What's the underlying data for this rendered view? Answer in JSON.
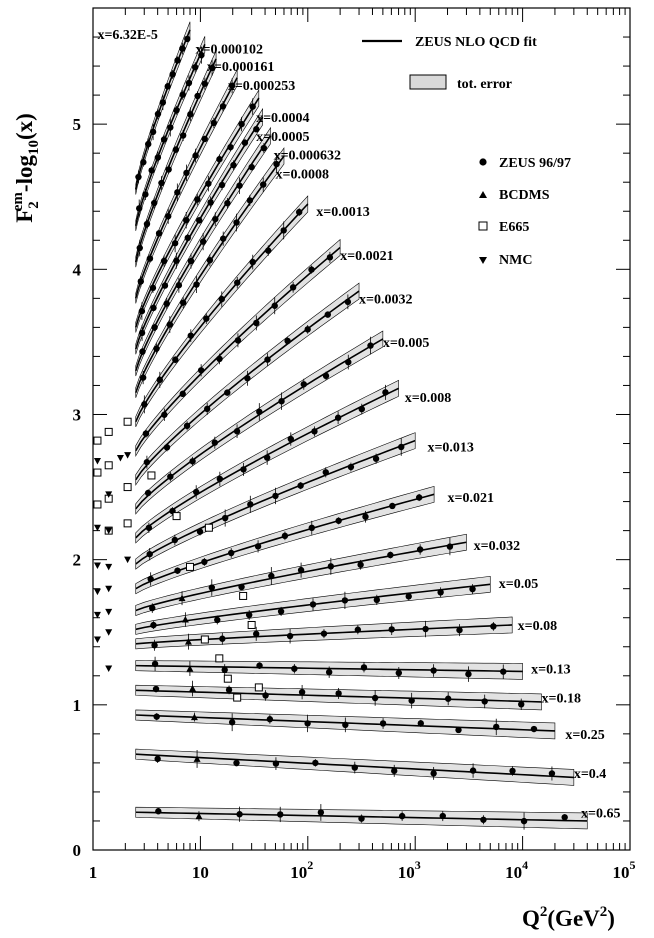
{
  "chart_data": {
    "type": "line",
    "xscale": "log",
    "xlim": [
      1,
      100000
    ],
    "ylim": [
      0,
      5.8
    ],
    "xlabel": {
      "base": "Q",
      "sup1": "2",
      "paren": "(GeV",
      "sup2": "2",
      "close": ")"
    },
    "ylabel": {
      "base": "F",
      "sub": "2",
      "sup": "em",
      "rest": "-log",
      "sub2": "10",
      "tail": "(x)"
    },
    "yticks": [
      "0",
      "1",
      "2",
      "3",
      "4",
      "5"
    ],
    "xticks": [
      {
        "base": "1",
        "exp": ""
      },
      {
        "base": "10",
        "exp": ""
      },
      {
        "base": "10",
        "exp": "2"
      },
      {
        "base": "10",
        "exp": "3"
      },
      {
        "base": "10",
        "exp": "4"
      },
      {
        "base": "10",
        "exp": "5"
      }
    ],
    "legend_top": [
      {
        "name": "ZEUS NLO QCD fit",
        "symbol": "line"
      },
      {
        "name": "tot. error",
        "symbol": "band"
      }
    ],
    "legend_data": [
      {
        "name": "ZEUS 96/97",
        "symbol": "circle"
      },
      {
        "name": "BCDMS",
        "symbol": "triangle-up"
      },
      {
        "name": "E665",
        "symbol": "square-open"
      },
      {
        "name": "NMC",
        "symbol": "triangle-down"
      }
    ],
    "bins": [
      {
        "label": "x=6.32E-5",
        "q2min": 2.5,
        "q2max": 8,
        "y0": 4.55,
        "y1": 5.65,
        "label_q2": 1.1,
        "label_y": 5.62
      },
      {
        "label": "x=0.000102",
        "q2min": 2.5,
        "q2max": 11,
        "y0": 4.3,
        "y1": 5.55,
        "label_q2": 9,
        "label_y": 5.52
      },
      {
        "label": "x=0.000161",
        "q2min": 2.5,
        "q2max": 14,
        "y0": 4.05,
        "y1": 5.45,
        "label_q2": 11.5,
        "label_y": 5.4
      },
      {
        "label": "x=0.000253",
        "q2min": 2.5,
        "q2max": 22,
        "y0": 3.8,
        "y1": 5.32,
        "label_q2": 18,
        "label_y": 5.27
      },
      {
        "label": "x=0.0004",
        "q2min": 2.5,
        "q2max": 35,
        "y0": 3.6,
        "y1": 5.18,
        "label_q2": 33,
        "label_y": 5.05
      },
      {
        "label": "x=0.0005",
        "q2min": 2.5,
        "q2max": 38,
        "y0": 3.45,
        "y1": 5.05,
        "label_q2": 33,
        "label_y": 4.92
      },
      {
        "label": "x=0.000632",
        "q2min": 2.5,
        "q2max": 45,
        "y0": 3.3,
        "y1": 4.92,
        "label_q2": 48,
        "label_y": 4.79
      },
      {
        "label": "x=0.0008",
        "q2min": 2.5,
        "q2max": 60,
        "y0": 3.15,
        "y1": 4.78,
        "label_q2": 50,
        "label_y": 4.66
      },
      {
        "label": "x=0.0013",
        "q2min": 2.5,
        "q2max": 100,
        "y0": 2.95,
        "y1": 4.45,
        "label_q2": 120,
        "label_y": 4.4
      },
      {
        "label": "x=0.0021",
        "q2min": 2.5,
        "q2max": 200,
        "y0": 2.75,
        "y1": 4.15,
        "label_q2": 200,
        "label_y": 4.1
      },
      {
        "label": "x=0.0032",
        "q2min": 2.5,
        "q2max": 300,
        "y0": 2.55,
        "y1": 3.85,
        "label_q2": 300,
        "label_y": 3.8
      },
      {
        "label": "x=0.005",
        "q2min": 2.5,
        "q2max": 500,
        "y0": 2.35,
        "y1": 3.52,
        "label_q2": 500,
        "label_y": 3.5
      },
      {
        "label": "x=0.008",
        "q2min": 2.5,
        "q2max": 700,
        "y0": 2.15,
        "y1": 3.18,
        "label_q2": 800,
        "label_y": 3.12
      },
      {
        "label": "x=0.013",
        "q2min": 2.5,
        "q2max": 1000,
        "y0": 1.97,
        "y1": 2.82,
        "label_q2": 1300,
        "label_y": 2.78
      },
      {
        "label": "x=0.021",
        "q2min": 2.5,
        "q2max": 1500,
        "y0": 1.8,
        "y1": 2.45,
        "label_q2": 2000,
        "label_y": 2.43
      },
      {
        "label": "x=0.032",
        "q2min": 2.5,
        "q2max": 3000,
        "y0": 1.65,
        "y1": 2.12,
        "label_q2": 3500,
        "label_y": 2.1
      },
      {
        "label": "x=0.05",
        "q2min": 2.5,
        "q2max": 5000,
        "y0": 1.52,
        "y1": 1.83,
        "label_q2": 6000,
        "label_y": 1.84
      },
      {
        "label": "x=0.08",
        "q2min": 2.5,
        "q2max": 8000,
        "y0": 1.42,
        "y1": 1.55,
        "label_q2": 9000,
        "label_y": 1.55
      },
      {
        "label": "x=0.13",
        "q2min": 2.5,
        "q2max": 10000,
        "y0": 1.27,
        "y1": 1.23,
        "label_q2": 12000,
        "label_y": 1.25
      },
      {
        "label": "x=0.18",
        "q2min": 2.5,
        "q2max": 15000,
        "y0": 1.1,
        "y1": 1.02,
        "label_q2": 15000,
        "label_y": 1.05
      },
      {
        "label": "x=0.25",
        "q2min": 2.5,
        "q2max": 20000,
        "y0": 0.93,
        "y1": 0.82,
        "label_q2": 25000,
        "label_y": 0.8
      },
      {
        "label": "x=0.4",
        "q2min": 2.5,
        "q2max": 30000,
        "y0": 0.66,
        "y1": 0.5,
        "label_q2": 30000,
        "label_y": 0.53
      },
      {
        "label": "x=0.65",
        "q2min": 2.5,
        "q2max": 40000,
        "y0": 0.26,
        "y1": 0.2,
        "label_q2": 35000,
        "label_y": 0.26
      }
    ],
    "extra_points": [
      {
        "symbol": "square-open",
        "q2": 1.1,
        "y": 2.82
      },
      {
        "symbol": "square-open",
        "q2": 1.4,
        "y": 2.88
      },
      {
        "symbol": "square-open",
        "q2": 2.1,
        "y": 2.95
      },
      {
        "symbol": "square-open",
        "q2": 1.1,
        "y": 2.6
      },
      {
        "symbol": "square-open",
        "q2": 1.4,
        "y": 2.65
      },
      {
        "symbol": "square-open",
        "q2": 1.1,
        "y": 2.38
      },
      {
        "symbol": "square-open",
        "q2": 1.4,
        "y": 2.42
      },
      {
        "symbol": "square-open",
        "q2": 2.1,
        "y": 2.5
      },
      {
        "symbol": "square-open",
        "q2": 1.4,
        "y": 2.2
      },
      {
        "symbol": "square-open",
        "q2": 2.1,
        "y": 2.25
      },
      {
        "symbol": "square-open",
        "q2": 3.5,
        "y": 2.58
      },
      {
        "symbol": "square-open",
        "q2": 6,
        "y": 2.3
      },
      {
        "symbol": "square-open",
        "q2": 8,
        "y": 1.95
      },
      {
        "symbol": "square-open",
        "q2": 12,
        "y": 2.22
      },
      {
        "symbol": "square-open",
        "q2": 11,
        "y": 1.45
      },
      {
        "symbol": "square-open",
        "q2": 15,
        "y": 1.32
      },
      {
        "symbol": "square-open",
        "q2": 18,
        "y": 1.18
      },
      {
        "symbol": "square-open",
        "q2": 22,
        "y": 1.05
      },
      {
        "symbol": "square-open",
        "q2": 25,
        "y": 1.75
      },
      {
        "symbol": "square-open",
        "q2": 30,
        "y": 1.55
      },
      {
        "symbol": "square-open",
        "q2": 35,
        "y": 1.12
      },
      {
        "symbol": "triangle-down",
        "q2": 1.1,
        "y": 2.68
      },
      {
        "symbol": "triangle-down",
        "q2": 1.4,
        "y": 2.45
      },
      {
        "symbol": "triangle-down",
        "q2": 1.8,
        "y": 2.7
      },
      {
        "symbol": "triangle-down",
        "q2": 2.1,
        "y": 2.72
      },
      {
        "symbol": "triangle-down",
        "q2": 1.1,
        "y": 2.22
      },
      {
        "symbol": "triangle-down",
        "q2": 1.4,
        "y": 2.2
      },
      {
        "symbol": "triangle-down",
        "q2": 1.1,
        "y": 1.96
      },
      {
        "symbol": "triangle-down",
        "q2": 1.4,
        "y": 1.95
      },
      {
        "symbol": "triangle-down",
        "q2": 2.1,
        "y": 2.0
      },
      {
        "symbol": "triangle-down",
        "q2": 1.1,
        "y": 1.78
      },
      {
        "symbol": "triangle-down",
        "q2": 1.4,
        "y": 1.8
      },
      {
        "symbol": "triangle-down",
        "q2": 1.1,
        "y": 1.62
      },
      {
        "symbol": "triangle-down",
        "q2": 1.4,
        "y": 1.64
      },
      {
        "symbol": "triangle-down",
        "q2": 1.1,
        "y": 1.45
      },
      {
        "symbol": "triangle-down",
        "q2": 1.4,
        "y": 1.5
      },
      {
        "symbol": "triangle-down",
        "q2": 1.4,
        "y": 1.25
      }
    ]
  }
}
